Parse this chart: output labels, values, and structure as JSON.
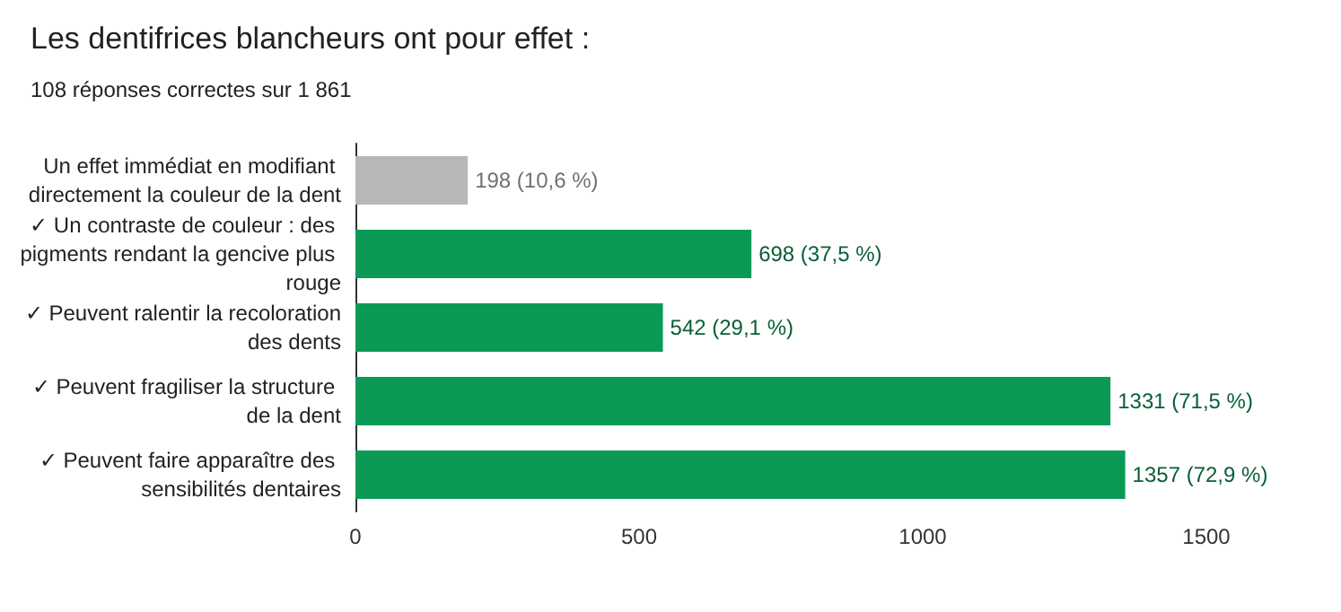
{
  "chart_data": {
    "type": "bar",
    "orientation": "horizontal",
    "title": "Les dentifrices blancheurs ont pour effet :",
    "subtitle": "108 réponses correctes sur 1 861",
    "categories": [
      "Un effet immédiat en modifiant directement la couleur de la dent",
      "✓ Un contraste de couleur : des pigments rendant la gencive plus rouge",
      "✓ Peuvent ralentir la recoloration des dents",
      "✓ Peuvent fragiliser la structure de la dent",
      "✓ Peuvent faire apparaître des sensibilités dentaires"
    ],
    "values": [
      198,
      698,
      542,
      1331,
      1357
    ],
    "colors": [
      "#b7b7b7",
      "#0b9a56",
      "#0b9a56",
      "#0b9a56",
      "#0b9a56"
    ],
    "value_labels": [
      "198 (10,6 %)",
      "698 (37,5 %)",
      "542 (29,1 %)",
      "1331 (71,5 %)",
      "1357 (72,9 %)"
    ],
    "xlim": [
      0,
      1500
    ],
    "xticks": [
      0,
      500,
      1000,
      1500
    ],
    "grid": false
  }
}
